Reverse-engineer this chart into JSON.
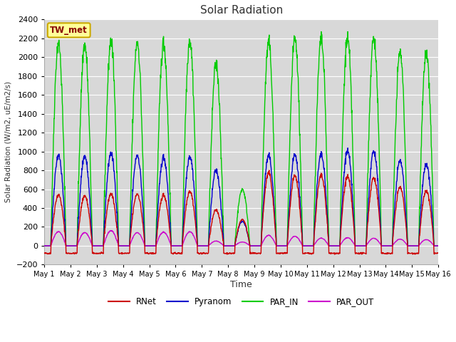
{
  "title": "Solar Radiation",
  "ylabel": "Solar Radiation (W/m2, uE/m2/s)",
  "xlabel": "Time",
  "ylim": [
    -200,
    2400
  ],
  "yticks": [
    -200,
    0,
    200,
    400,
    600,
    800,
    1000,
    1200,
    1400,
    1600,
    1800,
    2000,
    2200,
    2400
  ],
  "plot_bg_color": "#d8d8d8",
  "fig_bg_color": "#ffffff",
  "grid_color": "#ffffff",
  "colors": {
    "RNet": "#cc0000",
    "Pyranom": "#0000cc",
    "PAR_IN": "#00cc00",
    "PAR_OUT": "#cc00cc"
  },
  "station_label": "TW_met",
  "station_label_color": "#880000",
  "station_box_facecolor": "#ffff99",
  "station_box_edgecolor": "#ccaa00",
  "n_days": 15,
  "dt_hours": 0.25,
  "par_peaks": [
    2150,
    2130,
    2170,
    2160,
    2150,
    2180,
    1930,
    600,
    2150,
    2190,
    2180,
    2190,
    2200,
    2050,
    2040
  ],
  "pyr_peaks": [
    960,
    950,
    980,
    960,
    940,
    950,
    800,
    260,
    950,
    960,
    960,
    1000,
    1000,
    900,
    860
  ],
  "rnet_peaks": [
    540,
    530,
    550,
    550,
    540,
    580,
    380,
    280,
    770,
    740,
    740,
    730,
    720,
    620,
    580
  ],
  "par_out_peaks": [
    150,
    140,
    160,
    140,
    145,
    150,
    50,
    40,
    110,
    100,
    80,
    85,
    80,
    70,
    65
  ],
  "rnet_night": -80
}
